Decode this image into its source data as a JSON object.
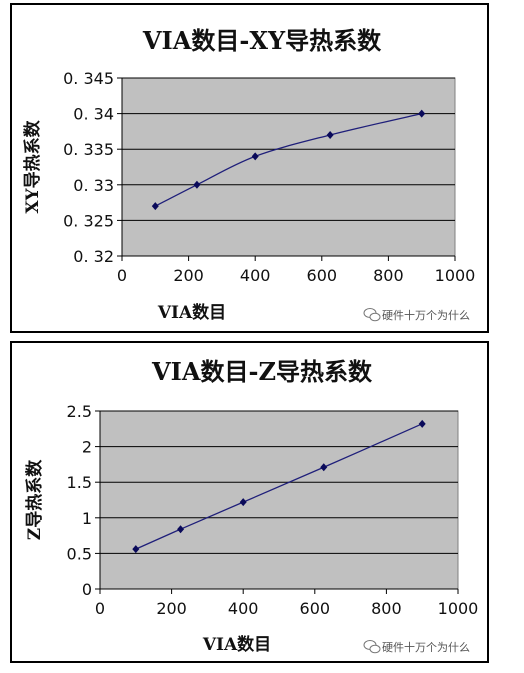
{
  "chart_data": [
    {
      "type": "line",
      "title": "VIA数目-XY导热系数",
      "xlabel": "VIA数目",
      "ylabel": "XY导热系数",
      "xlim": [
        0,
        1000
      ],
      "ylim": [
        0.32,
        0.345
      ],
      "xticks": [
        "0",
        "200",
        "400",
        "600",
        "800",
        "1000"
      ],
      "yticks": [
        "0. 32",
        "0. 325",
        "0. 33",
        "0. 335",
        "0. 34",
        "0. 345"
      ],
      "grid": "horizontal",
      "series": [
        {
          "x": [
            100,
            225,
            400,
            625,
            900
          ],
          "y": [
            0.327,
            0.33,
            0.334,
            0.337,
            0.34
          ]
        }
      ],
      "watermark": "硬件十万个为什么",
      "colors": {
        "plot_bg": "#c0c0c0",
        "line": "#1f1f7a",
        "marker": "#0a0a5a",
        "grid": "#000000"
      }
    },
    {
      "type": "line",
      "title": "VIA数目-Z导热系数",
      "xlabel": "VIA数目",
      "ylabel": "Z导热系数",
      "xlim": [
        0,
        1000
      ],
      "ylim": [
        0,
        2.5
      ],
      "xticks": [
        "0",
        "200",
        "400",
        "600",
        "800",
        "1000"
      ],
      "yticks": [
        "0",
        "0.5",
        "1",
        "1.5",
        "2",
        "2.5"
      ],
      "grid": "horizontal",
      "series": [
        {
          "x": [
            100,
            225,
            400,
            625,
            900
          ],
          "y": [
            0.56,
            0.84,
            1.22,
            1.71,
            2.32
          ]
        }
      ],
      "watermark": "硬件十万个为什么",
      "colors": {
        "plot_bg": "#c0c0c0",
        "line": "#1f1f7a",
        "marker": "#0a0a5a",
        "grid": "#000000"
      }
    }
  ]
}
